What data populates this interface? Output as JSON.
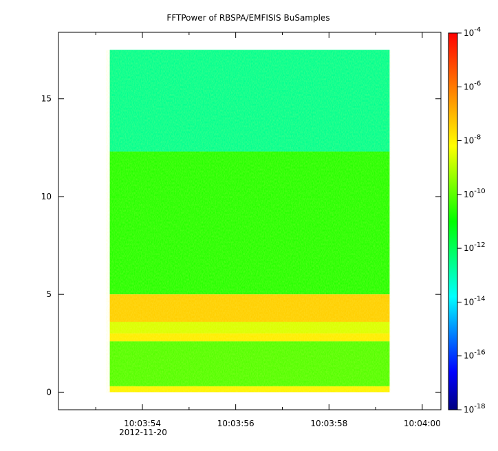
{
  "chart_data": {
    "type": "heatmap",
    "title": "FFTPower of RBSPA/EMFISIS  BuSamples",
    "x": {
      "ticks": [
        "10:03:54",
        "10:03:56",
        "10:03:58",
        "10:04:00"
      ],
      "date_label": "2012-11-20",
      "range": [
        "10:03:52.2",
        "10:04:00.4"
      ],
      "data_start": "10:03:53.3",
      "data_end": "10:03:59.3"
    },
    "y": {
      "ticks": [
        "0",
        "5",
        "10",
        "15"
      ],
      "range": [
        -0.9,
        18.4
      ],
      "data_top": 17.5
    },
    "colorbar": {
      "scale": "log",
      "range": [
        1e-18,
        0.0001
      ],
      "ticks": [
        {
          "base": "10",
          "exp": "-4"
        },
        {
          "base": "10",
          "exp": "-6"
        },
        {
          "base": "10",
          "exp": "-8"
        },
        {
          "base": "10",
          "exp": "-10"
        },
        {
          "base": "10",
          "exp": "-12"
        },
        {
          "base": "10",
          "exp": "-14"
        },
        {
          "base": "10",
          "exp": "-16"
        },
        {
          "base": "10",
          "exp": "-18"
        }
      ],
      "colors": [
        "#00007f",
        "#0000ff",
        "#007fff",
        "#00ffff",
        "#00ff7f",
        "#00ff00",
        "#7fff00",
        "#ffff00",
        "#ffaa00",
        "#ff5500",
        "#ff0000"
      ]
    },
    "bands": [
      {
        "y_from": 12.3,
        "y_to": 17.5,
        "log_power": -12.6
      },
      {
        "y_from": 5.0,
        "y_to": 12.3,
        "log_power": -10.6
      },
      {
        "y_from": 3.6,
        "y_to": 5.0,
        "log_power": -7.4
      },
      {
        "y_from": 3.0,
        "y_to": 3.6,
        "log_power": -8.6
      },
      {
        "y_from": 2.6,
        "y_to": 3.0,
        "log_power": -7.9
      },
      {
        "y_from": 0.3,
        "y_to": 2.6,
        "log_power": -10.1
      },
      {
        "y_from": 0.0,
        "y_to": 0.3,
        "log_power": -8.0
      }
    ]
  }
}
